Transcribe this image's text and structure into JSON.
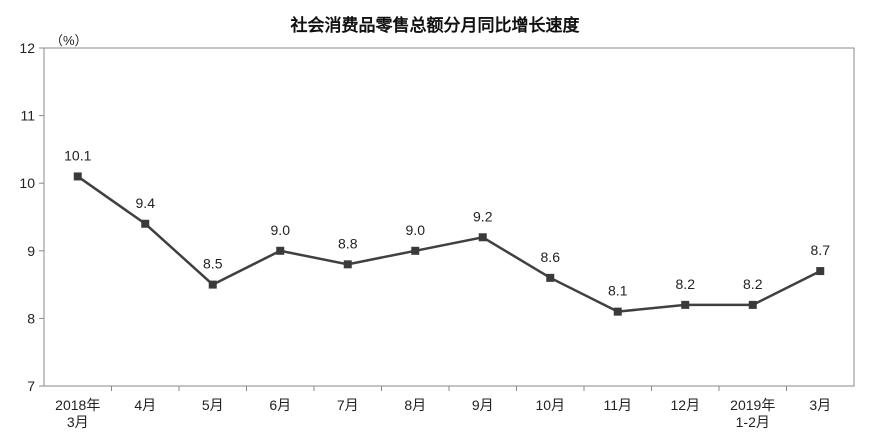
{
  "chart_data": {
    "type": "line",
    "title": "社会消费品零售总额分月同比增长速度",
    "ylabel": "（%）",
    "xlabel": "",
    "ylim": [
      7,
      12
    ],
    "yticks": [
      "7",
      "8",
      "9",
      "10",
      "11",
      "12"
    ],
    "categories": [
      [
        "2018年",
        "3月"
      ],
      [
        "4月"
      ],
      [
        "5月"
      ],
      [
        "6月"
      ],
      [
        "7月"
      ],
      [
        "8月"
      ],
      [
        "9月"
      ],
      [
        "10月"
      ],
      [
        "11月"
      ],
      [
        "12月"
      ],
      [
        "2019年",
        "1-2月"
      ],
      [
        "3月"
      ]
    ],
    "values": [
      10.1,
      9.4,
      8.5,
      9.0,
      8.8,
      9.0,
      9.2,
      8.6,
      8.1,
      8.2,
      8.2,
      8.7
    ],
    "data_labels": [
      "10.1",
      "9.4",
      "8.5",
      "9.0",
      "8.8",
      "9.0",
      "9.2",
      "8.6",
      "8.1",
      "8.2",
      "8.2",
      "8.7"
    ],
    "grid": false,
    "legend": "none",
    "line_color": "#404040",
    "marker": "square"
  }
}
